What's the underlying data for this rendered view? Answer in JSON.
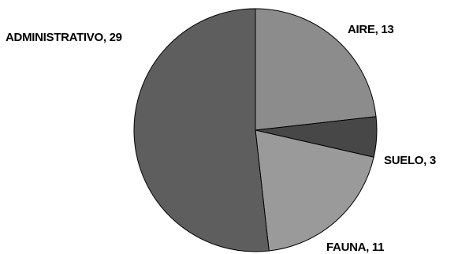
{
  "chart_data": {
    "type": "pie",
    "title": "",
    "start_angle": "12 o'clock",
    "direction": "clockwise",
    "legend": "none",
    "slices": [
      {
        "label": "AIRE",
        "value": 13,
        "display": "AIRE, 13",
        "color": "#8c8c8c"
      },
      {
        "label": "SUELO",
        "value": 3,
        "display": "SUELO, 3",
        "color": "#474747"
      },
      {
        "label": "FAUNA",
        "value": 11,
        "display": "FAUNA, 11",
        "color": "#9a9a9a"
      },
      {
        "label": "ADMINISTRATIVO",
        "value": 29,
        "display": "ADMINISTRATIVO, 29",
        "color": "#5e5e5e"
      }
    ]
  }
}
